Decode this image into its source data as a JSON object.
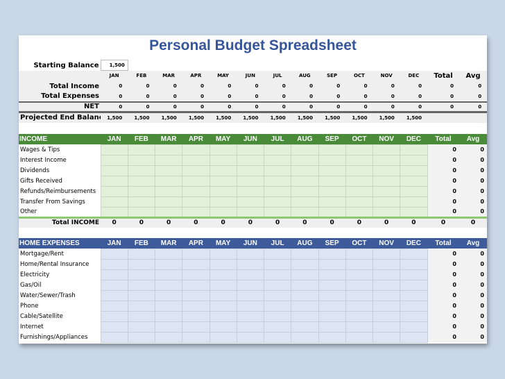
{
  "title": "Personal Budget Spreadsheet",
  "months": [
    "JAN",
    "FEB",
    "MAR",
    "APR",
    "MAY",
    "JUN",
    "JUL",
    "AUG",
    "SEP",
    "OCT",
    "NOV",
    "DEC"
  ],
  "total_label": "Total",
  "avg_label": "Avg",
  "summary": {
    "starting_balance_label": "Starting Balance",
    "starting_balance": "1,500",
    "rows": [
      {
        "label": "Total Income",
        "values": [
          "0",
          "0",
          "0",
          "0",
          "0",
          "0",
          "0",
          "0",
          "0",
          "0",
          "0",
          "0"
        ],
        "total": "0",
        "avg": "0"
      },
      {
        "label": "Total Expenses",
        "values": [
          "0",
          "0",
          "0",
          "0",
          "0",
          "0",
          "0",
          "0",
          "0",
          "0",
          "0",
          "0"
        ],
        "total": "0",
        "avg": "0"
      },
      {
        "label": "NET",
        "values": [
          "0",
          "0",
          "0",
          "0",
          "0",
          "0",
          "0",
          "0",
          "0",
          "0",
          "0",
          "0"
        ],
        "total": "0",
        "avg": "0"
      },
      {
        "label": "Projected End Balance",
        "values": [
          "1,500",
          "1,500",
          "1,500",
          "1,500",
          "1,500",
          "1,500",
          "1,500",
          "1,500",
          "1,500",
          "1,500",
          "1,500",
          "1,500"
        ],
        "total": "",
        "avg": ""
      }
    ]
  },
  "income": {
    "header": "INCOME",
    "items": [
      {
        "label": "Wages & Tips",
        "total": "0",
        "avg": "0"
      },
      {
        "label": "Interest Income",
        "total": "0",
        "avg": "0"
      },
      {
        "label": "Dividends",
        "total": "0",
        "avg": "0"
      },
      {
        "label": "Gifts Received",
        "total": "0",
        "avg": "0"
      },
      {
        "label": "Refunds/Reimbursements",
        "total": "0",
        "avg": "0"
      },
      {
        "label": "Transfer From Savings",
        "total": "0",
        "avg": "0"
      },
      {
        "label": "Other",
        "total": "0",
        "avg": "0"
      }
    ],
    "total_row": {
      "label": "Total INCOME",
      "values": [
        "0",
        "0",
        "0",
        "0",
        "0",
        "0",
        "0",
        "0",
        "0",
        "0",
        "0",
        "0"
      ],
      "total": "0",
      "avg": "0"
    }
  },
  "expenses": {
    "header": "HOME EXPENSES",
    "items": [
      {
        "label": "Mortgage/Rent",
        "total": "0",
        "avg": "0"
      },
      {
        "label": "Home/Rental Insurance",
        "total": "0",
        "avg": "0"
      },
      {
        "label": "Electricity",
        "total": "0",
        "avg": "0"
      },
      {
        "label": "Gas/Oil",
        "total": "0",
        "avg": "0"
      },
      {
        "label": "Water/Sewer/Trash",
        "total": "0",
        "avg": "0"
      },
      {
        "label": "Phone",
        "total": "0",
        "avg": "0"
      },
      {
        "label": "Cable/Satellite",
        "total": "0",
        "avg": "0"
      },
      {
        "label": "Internet",
        "total": "0",
        "avg": "0"
      },
      {
        "label": "Furnishings/Appliances",
        "total": "0",
        "avg": "0"
      }
    ]
  }
}
